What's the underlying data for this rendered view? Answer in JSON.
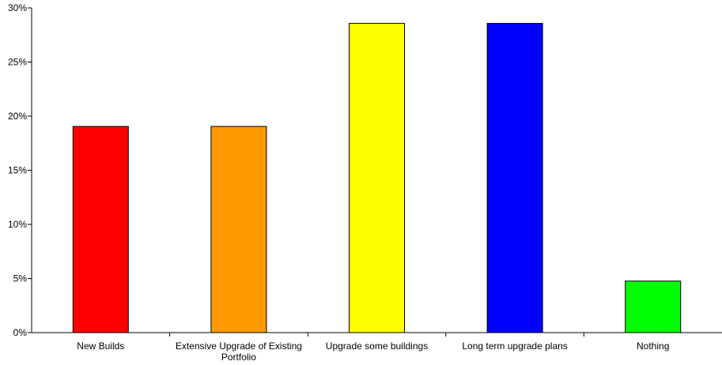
{
  "chart_data": {
    "type": "bar",
    "categories": [
      "New Builds",
      "Extensive Upgrade of Existing Portfolio",
      "Upgrade some buildings",
      "Long term upgrade plans",
      "Nothing"
    ],
    "category_label_lines": [
      [
        "New Builds"
      ],
      [
        "Extensive Upgrade of Existing",
        "Portfolio"
      ],
      [
        "Upgrade some buildings"
      ],
      [
        "Long term upgrade plans"
      ],
      [
        "Nothing"
      ]
    ],
    "values": [
      19.05,
      19.05,
      28.57,
      28.57,
      4.76
    ],
    "colors": [
      "#ff0000",
      "#ff9900",
      "#ffff00",
      "#0000ff",
      "#00ff00"
    ],
    "ylim": [
      0,
      30
    ],
    "yticks": [
      0,
      5,
      10,
      15,
      20,
      25,
      30
    ],
    "ytick_labels": [
      "0%",
      "5%",
      "10%",
      "15%",
      "20%",
      "25%",
      "30%"
    ],
    "grid": false,
    "legend": "none",
    "title": "",
    "xlabel": "",
    "ylabel": ""
  }
}
